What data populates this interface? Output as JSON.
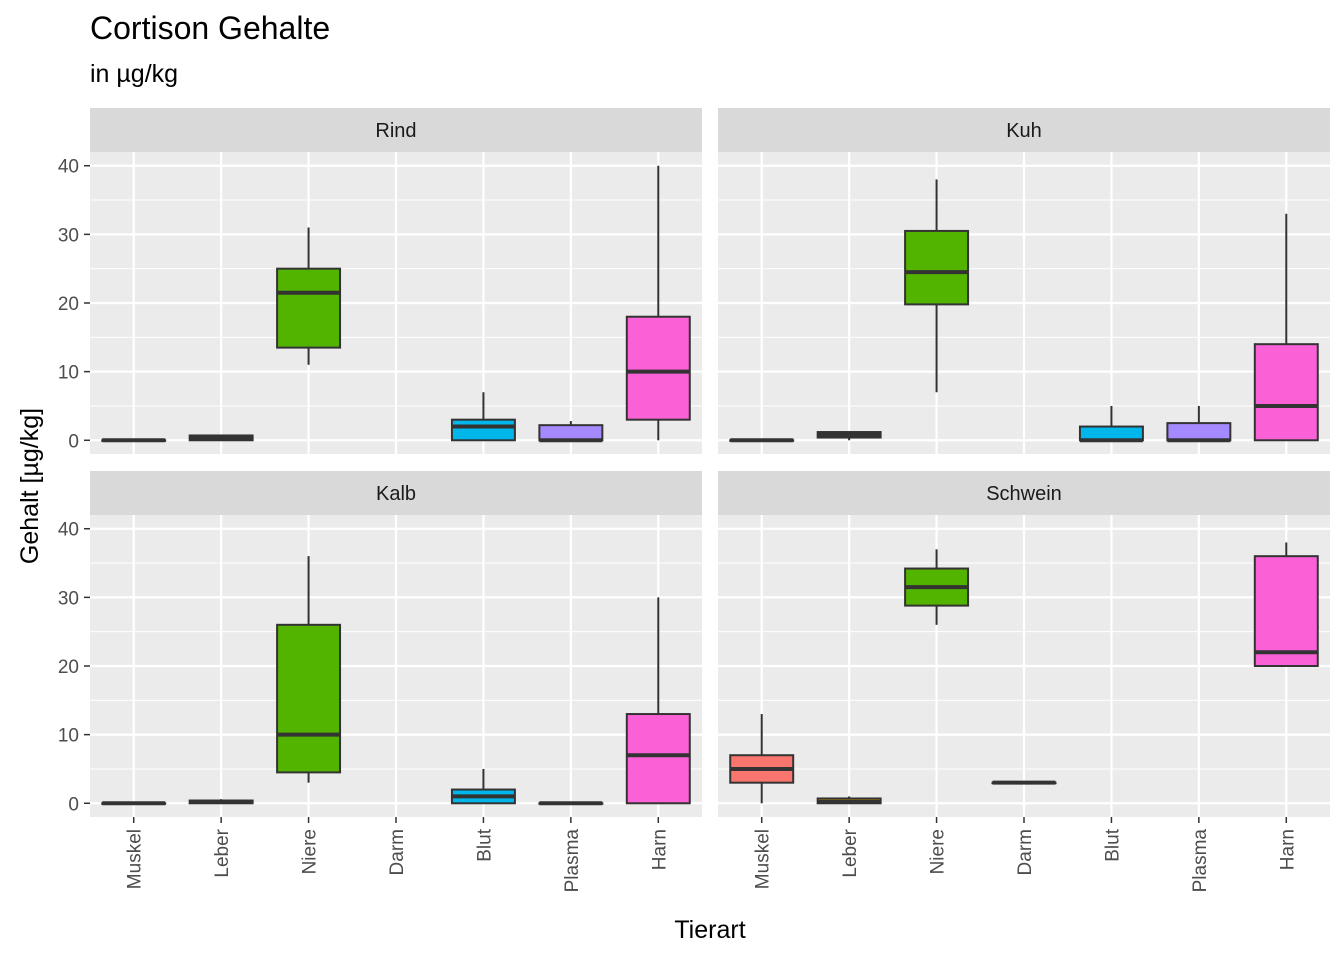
{
  "title": "Cortison Gehalte",
  "subtitle": "in µg/kg",
  "chart_data": {
    "type": "boxplot",
    "xlabel": "Tierart",
    "ylabel": "Gehalt [µg/kg]",
    "ylim": [
      -2,
      42
    ],
    "yticks": [
      0,
      10,
      20,
      30,
      40
    ],
    "categories": [
      "Muskel",
      "Leber",
      "Niere",
      "Darm",
      "Blut",
      "Plasma",
      "Harn"
    ],
    "colors": {
      "Muskel": "#F8766D",
      "Leber": "#C49A00",
      "Niere": "#53B400",
      "Darm": "#00C094",
      "Blut": "#00B6EB",
      "Plasma": "#A58AFF",
      "Harn": "#FB61D7"
    },
    "panels": [
      {
        "name": "Rind",
        "boxes": [
          {
            "category": "Muskel",
            "min": 0,
            "q1": 0,
            "median": 0,
            "q3": 0,
            "max": 0
          },
          {
            "category": "Leber",
            "min": 0,
            "q1": 0,
            "median": 0.3,
            "q3": 0.7,
            "max": 0.8
          },
          {
            "category": "Niere",
            "min": 11,
            "q1": 13.5,
            "median": 21.5,
            "q3": 25,
            "max": 31
          },
          {
            "category": "Blut",
            "min": 0,
            "q1": 0,
            "median": 2,
            "q3": 3,
            "max": 7
          },
          {
            "category": "Plasma",
            "min": 0,
            "q1": 0,
            "median": 0,
            "q3": 2.2,
            "max": 2.8
          },
          {
            "category": "Harn",
            "min": 0,
            "q1": 3,
            "median": 10,
            "q3": 18,
            "max": 40
          }
        ]
      },
      {
        "name": "Kuh",
        "boxes": [
          {
            "category": "Muskel",
            "min": 0,
            "q1": 0,
            "median": 0,
            "q3": 0,
            "max": 0
          },
          {
            "category": "Leber",
            "min": 0,
            "q1": 0.4,
            "median": 0.8,
            "q3": 1.2,
            "max": 1.3
          },
          {
            "category": "Niere",
            "min": 7,
            "q1": 19.8,
            "median": 24.5,
            "q3": 30.5,
            "max": 38
          },
          {
            "category": "Blut",
            "min": 0,
            "q1": 0,
            "median": 0,
            "q3": 2,
            "max": 5
          },
          {
            "category": "Plasma",
            "min": 0,
            "q1": 0,
            "median": 0,
            "q3": 2.5,
            "max": 5
          },
          {
            "category": "Harn",
            "min": 0,
            "q1": 0,
            "median": 5,
            "q3": 14,
            "max": 33
          }
        ]
      },
      {
        "name": "Kalb",
        "boxes": [
          {
            "category": "Muskel",
            "min": 0,
            "q1": 0,
            "median": 0,
            "q3": 0,
            "max": 0
          },
          {
            "category": "Leber",
            "min": 0,
            "q1": 0,
            "median": 0.2,
            "q3": 0.4,
            "max": 0.6
          },
          {
            "category": "Niere",
            "min": 3,
            "q1": 4.5,
            "median": 10,
            "q3": 26,
            "max": 36
          },
          {
            "category": "Blut",
            "min": 0,
            "q1": 0,
            "median": 1,
            "q3": 2,
            "max": 5
          },
          {
            "category": "Plasma",
            "min": 0,
            "q1": 0,
            "median": 0,
            "q3": 0,
            "max": 0
          },
          {
            "category": "Harn",
            "min": 0,
            "q1": 0,
            "median": 7,
            "q3": 13,
            "max": 30
          }
        ]
      },
      {
        "name": "Schwein",
        "boxes": [
          {
            "category": "Muskel",
            "min": 0,
            "q1": 3,
            "median": 5,
            "q3": 7,
            "max": 13
          },
          {
            "category": "Leber",
            "min": 0,
            "q1": 0,
            "median": 0.2,
            "q3": 0.7,
            "max": 1
          },
          {
            "category": "Niere",
            "min": 26,
            "q1": 28.8,
            "median": 31.5,
            "q3": 34.2,
            "max": 37
          },
          {
            "category": "Darm",
            "min": 3,
            "q1": 3,
            "median": 3,
            "q3": 3,
            "max": 3
          },
          {
            "category": "Harn",
            "min": 20,
            "q1": 20,
            "median": 22,
            "q3": 36,
            "max": 38
          }
        ]
      }
    ]
  }
}
